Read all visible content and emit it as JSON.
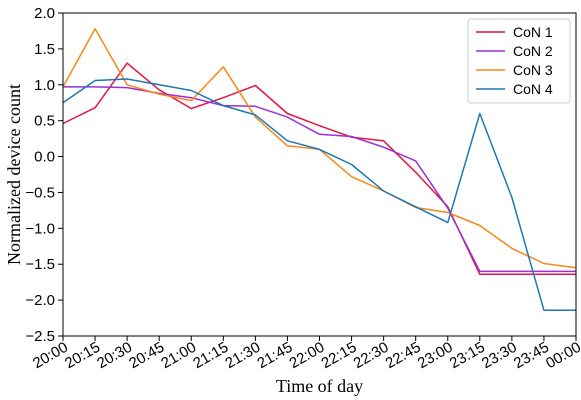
{
  "chart_data": {
    "type": "line",
    "xlabel": "Time of day",
    "ylabel": "Normalized device count",
    "ylim": [
      -2.5,
      2.0
    ],
    "yticks": [
      2.0,
      1.5,
      1.0,
      0.5,
      0.0,
      -0.5,
      -1.0,
      -1.5,
      -2.0,
      -2.5
    ],
    "ytick_labels": [
      "2.0",
      "1.5",
      "1.0",
      "0.5",
      "0.0",
      "−0.5",
      "−1.0",
      "−1.5",
      "−2.0",
      "−2.5"
    ],
    "categories": [
      "20:00",
      "20:15",
      "20:30",
      "20:45",
      "21:00",
      "21:15",
      "21:30",
      "21:45",
      "22:00",
      "22:15",
      "22:30",
      "22:45",
      "23:00",
      "23:15",
      "23:30",
      "23:45",
      "00:00"
    ],
    "grid": false,
    "legend_position": "top-right",
    "series": [
      {
        "name": "CoN 1",
        "color": "#e3173f",
        "values": [
          0.46,
          0.68,
          1.3,
          0.93,
          0.67,
          0.82,
          0.99,
          0.6,
          0.43,
          0.27,
          0.22,
          -0.22,
          -0.7,
          -1.64,
          -1.64,
          -1.64,
          -1.64
        ]
      },
      {
        "name": "CoN 2",
        "color": "#9c2fd6",
        "values": [
          0.97,
          0.97,
          0.96,
          0.88,
          0.82,
          0.71,
          0.7,
          0.55,
          0.31,
          0.28,
          0.13,
          -0.06,
          -0.72,
          -1.6,
          -1.6,
          -1.6,
          -1.6
        ]
      },
      {
        "name": "CoN 3",
        "color": "#f5881a",
        "values": [
          0.97,
          1.78,
          1.0,
          0.87,
          0.78,
          1.25,
          0.55,
          0.15,
          0.1,
          -0.28,
          -0.48,
          -0.71,
          -0.78,
          -0.96,
          -1.28,
          -1.49,
          -1.55
        ]
      },
      {
        "name": "CoN 4",
        "color": "#1f77b4",
        "values": [
          0.75,
          1.06,
          1.08,
          1.0,
          0.92,
          0.71,
          0.58,
          0.22,
          0.1,
          -0.11,
          -0.48,
          -0.7,
          -0.92,
          0.6,
          -0.57,
          -2.14,
          -2.14
        ]
      }
    ]
  }
}
